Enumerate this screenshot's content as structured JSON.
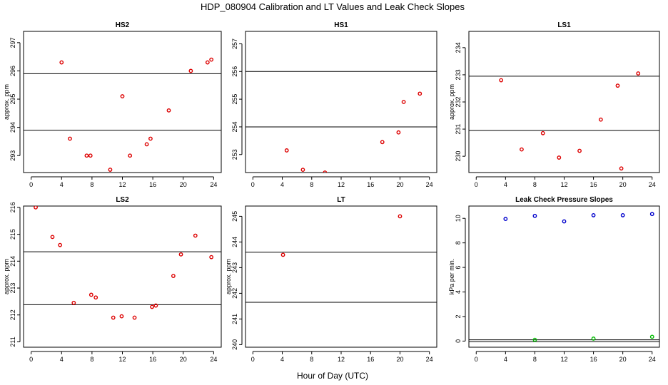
{
  "figure": {
    "title": "HDP_080904  Calibration and LT Values and Leak Check Slopes",
    "xlabel": "Hour of Day (UTC)"
  },
  "colors": {
    "red": "#dd0000",
    "blue": "#0000cc",
    "green": "#00bb00"
  },
  "chart_data": [
    {
      "type": "scatter",
      "title": "HS2",
      "xlabel": "",
      "ylabel": "approx. ppm",
      "xlim": [
        -1,
        25
      ],
      "ylim": [
        292.4,
        297.4
      ],
      "xticks": [
        0,
        4,
        8,
        12,
        16,
        20,
        24
      ],
      "yticks": [
        293,
        294,
        295,
        296,
        297
      ],
      "hlines": [
        293.9,
        295.9
      ],
      "series": [
        {
          "color": "#dd0000",
          "x": [
            4,
            5.1,
            7.3,
            7.8,
            10.4,
            12,
            13,
            15.2,
            15.7,
            18.1,
            21,
            23.2,
            23.7
          ],
          "y": [
            296.3,
            293.6,
            293.0,
            293.0,
            292.5,
            295.1,
            293.0,
            293.4,
            293.6,
            294.6,
            296.0,
            296.3,
            296.4
          ]
        }
      ]
    },
    {
      "type": "scatter",
      "title": "HS1",
      "xlabel": "",
      "ylabel": "",
      "xlim": [
        -1,
        25
      ],
      "ylim": [
        252.35,
        257.45
      ],
      "xticks": [
        0,
        4,
        8,
        12,
        16,
        20,
        24
      ],
      "yticks": [
        253,
        254,
        255,
        256,
        257
      ],
      "hlines": [
        256.0,
        254.0
      ],
      "series": [
        {
          "color": "#dd0000",
          "x": [
            4.6,
            6.8,
            9.8,
            17.6,
            19.8,
            20.5,
            22.7
          ],
          "y": [
            253.15,
            252.45,
            252.35,
            253.45,
            253.8,
            254.9,
            255.2
          ]
        }
      ]
    },
    {
      "type": "scatter",
      "title": "LS1",
      "xlabel": "",
      "ylabel": "approx. ppm",
      "xlim": [
        -1,
        25
      ],
      "ylim": [
        229.4,
        234.6
      ],
      "xticks": [
        0,
        4,
        8,
        12,
        16,
        20,
        24
      ],
      "yticks": [
        230,
        231,
        232,
        233,
        234
      ],
      "hlines": [
        232.95,
        230.95
      ],
      "series": [
        {
          "color": "#dd0000",
          "x": [
            3.4,
            6.2,
            9.1,
            11.3,
            14.1,
            17,
            19.3,
            19.8,
            22.1
          ],
          "y": [
            232.8,
            230.25,
            230.85,
            229.95,
            230.2,
            231.35,
            232.6,
            229.55,
            233.05
          ]
        }
      ]
    },
    {
      "type": "scatter",
      "title": "LS2",
      "xlabel": "",
      "ylabel": "approx. ppm",
      "xlim": [
        -1,
        25
      ],
      "ylim": [
        210.8,
        216.05
      ],
      "xticks": [
        0,
        4,
        8,
        12,
        16,
        20,
        24
      ],
      "yticks": [
        211,
        212,
        213,
        214,
        215,
        216
      ],
      "hlines": [
        214.35,
        212.38
      ],
      "series": [
        {
          "color": "#dd0000",
          "x": [
            0.6,
            2.8,
            3.8,
            5.6,
            7.9,
            8.5,
            10.8,
            11.9,
            13.6,
            15.9,
            16.4,
            18.7,
            19.7,
            21.6,
            23.7
          ],
          "y": [
            216.0,
            214.9,
            214.6,
            212.45,
            212.75,
            212.65,
            211.9,
            211.95,
            211.9,
            212.3,
            212.35,
            213.45,
            214.25,
            214.95,
            214.15
          ]
        }
      ]
    },
    {
      "type": "scatter",
      "title": "LT",
      "xlabel": "",
      "ylabel": "approx. ppm",
      "xlim": [
        -1,
        25
      ],
      "ylim": [
        239.9,
        245.4
      ],
      "xticks": [
        0,
        4,
        8,
        12,
        16,
        20,
        24
      ],
      "yticks": [
        240,
        241,
        242,
        243,
        244,
        245
      ],
      "hlines": [
        243.6,
        241.65
      ],
      "series": [
        {
          "color": "#dd0000",
          "x": [
            4.1,
            20
          ],
          "y": [
            243.5,
            245.0
          ]
        }
      ]
    },
    {
      "type": "scatter",
      "title": "Leak Check Pressure Slopes",
      "xlabel": "",
      "ylabel": "kPa per min.",
      "xlim": [
        -1,
        25
      ],
      "ylim": [
        -0.5,
        11
      ],
      "xticks": [
        0,
        4,
        8,
        12,
        16,
        20,
        24
      ],
      "yticks": [
        0,
        2,
        4,
        6,
        8,
        10
      ],
      "hlines": [
        0.1,
        -0.05
      ],
      "series": [
        {
          "color": "#0000cc",
          "x": [
            4,
            8,
            12,
            16,
            20,
            24
          ],
          "y": [
            9.95,
            10.2,
            9.75,
            10.25,
            10.25,
            10.35
          ]
        },
        {
          "color": "#00bb00",
          "x": [
            8,
            16,
            24
          ],
          "y": [
            0.1,
            0.2,
            0.35
          ]
        }
      ]
    }
  ]
}
